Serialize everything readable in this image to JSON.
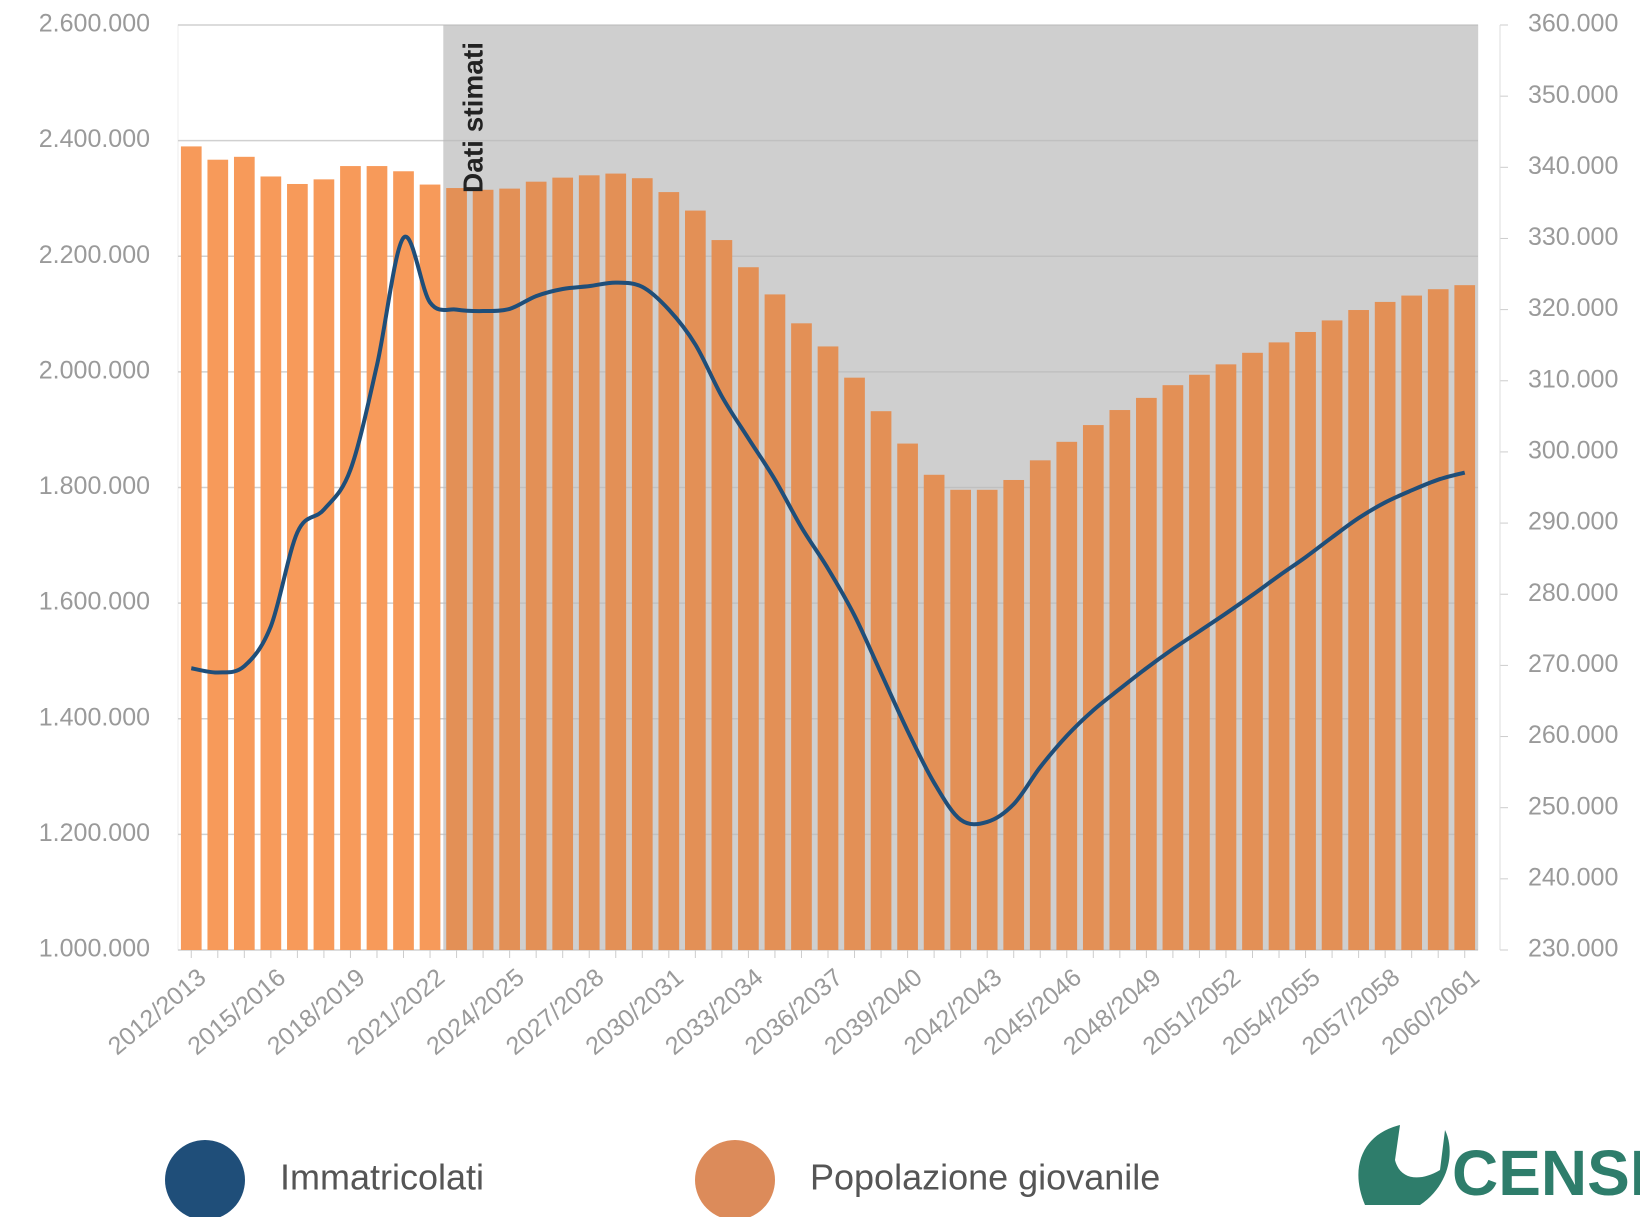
{
  "chart_data": {
    "type": "bar-line",
    "categories": [
      "2012/2013",
      null,
      null,
      "2015/2016",
      null,
      null,
      "2018/2019",
      null,
      null,
      "2021/2022",
      null,
      null,
      "2024/2025",
      null,
      null,
      "2027/2028",
      null,
      null,
      "2030/2031",
      null,
      null,
      "2033/2034",
      null,
      null,
      "2036/2037",
      null,
      null,
      "2039/2040",
      null,
      null,
      "2042/2043",
      null,
      null,
      "2045/2046",
      null,
      null,
      "2048/2049",
      null,
      null,
      "2051/2052",
      null,
      null,
      "2054/2055",
      null,
      null,
      "2057/2058",
      null,
      null,
      "2060/2061"
    ],
    "series": [
      {
        "name": "Popolazione giovanile",
        "color": "#f79a5a",
        "legend_color": "#dc8b5a",
        "axis": "y",
        "values": [
          2390000,
          2367000,
          2372000,
          2338000,
          2325000,
          2333000,
          2356000,
          2356000,
          2347000,
          2324000,
          2318000,
          2315000,
          2317000,
          2329000,
          2336000,
          2340000,
          2343000,
          2335000,
          2311000,
          2279000,
          2228000,
          2181000,
          2134000,
          2084000,
          2044000,
          1990000,
          1932000,
          1876000,
          1822000,
          1796000,
          1796000,
          1813000,
          1847000,
          1879000,
          1908000,
          1934000,
          1955000,
          1977000,
          1995000,
          2013000,
          2033000,
          2051000,
          2069000,
          2089000,
          2107000,
          2121000,
          2132000,
          2143000,
          2150000
        ]
      },
      {
        "name": "Immatricolati",
        "color": "#1f4e79",
        "legend_color": "#1f4e79",
        "axis": "y2",
        "values": [
          269600,
          269000,
          269900,
          275500,
          288700,
          291900,
          297500,
          312200,
          330100,
          321000,
          320000,
          319800,
          320100,
          321900,
          322900,
          323300,
          323800,
          323200,
          320000,
          315100,
          307800,
          301900,
          296100,
          289400,
          283600,
          277000,
          268900,
          260800,
          253500,
          248300,
          248000,
          250500,
          255700,
          260100,
          263700,
          266700,
          269600,
          272300,
          274800,
          277300,
          279900,
          282600,
          285200,
          288000,
          290700,
          292900,
          294600,
          296100,
          297100
        ]
      }
    ],
    "ylim": [
      1000000,
      2600000
    ],
    "yticks": [
      {
        "value": 1000000,
        "label": "1.000.000"
      },
      {
        "value": 1200000,
        "label": "1.200.000"
      },
      {
        "value": 1400000,
        "label": "1.400.000"
      },
      {
        "value": 1600000,
        "label": "1.600.000"
      },
      {
        "value": 1800000,
        "label": "1.800.000"
      },
      {
        "value": 2000000,
        "label": "2.000.000"
      },
      {
        "value": 2200000,
        "label": "2.200.000"
      },
      {
        "value": 2400000,
        "label": "2.400.000"
      },
      {
        "value": 2600000,
        "label": "2.600.000"
      }
    ],
    "y2lim": [
      230000,
      360000
    ],
    "y2ticks": [
      {
        "value": 230000,
        "label": "230.000"
      },
      {
        "value": 240000,
        "label": "240.000"
      },
      {
        "value": 250000,
        "label": "250.000"
      },
      {
        "value": 260000,
        "label": "260.000"
      },
      {
        "value": 270000,
        "label": "270.000"
      },
      {
        "value": 280000,
        "label": "280.000"
      },
      {
        "value": 290000,
        "label": "290.000"
      },
      {
        "value": 300000,
        "label": "300.000"
      },
      {
        "value": 310000,
        "label": "310.000"
      },
      {
        "value": 320000,
        "label": "320.000"
      },
      {
        "value": 330000,
        "label": "330.000"
      },
      {
        "value": 340000,
        "label": "340.000"
      },
      {
        "value": 350000,
        "label": "350.000"
      },
      {
        "value": 360000,
        "label": "360.000"
      }
    ],
    "grid": true,
    "shade_start": 10,
    "annotation": "Dati stimati",
    "logo": "CENSIS"
  }
}
